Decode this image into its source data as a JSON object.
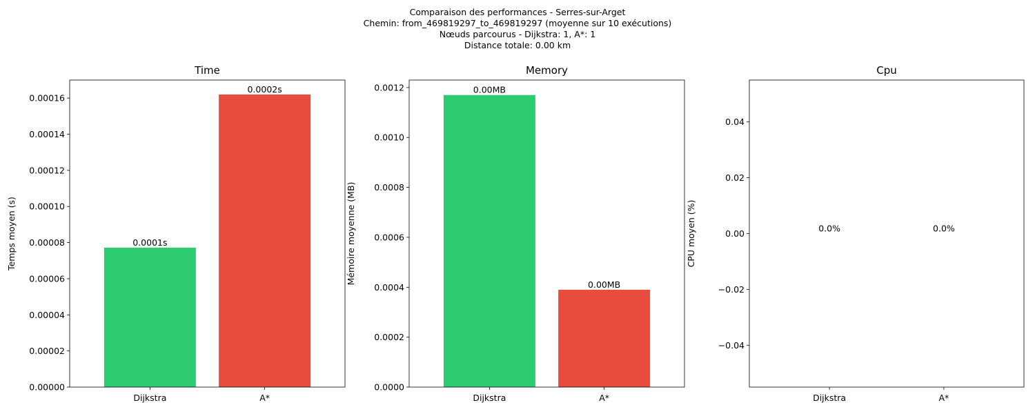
{
  "suptitle": {
    "line1": "Comparaison des performances - Serres-sur-Arget",
    "line2": "Chemin: from_469819297_to_469819297 (moyenne sur 10 exécutions)",
    "line3": "Nœuds parcourus - Dijkstra: 1, A*: 1",
    "line4": "Distance totale: 0.00 km"
  },
  "colors": {
    "dijkstra": "#2ecc71",
    "astar": "#e74c3c"
  },
  "chart_data": [
    {
      "type": "bar",
      "title": "Time",
      "xlabel": "",
      "ylabel": "Temps moyen (s)",
      "categories": [
        "Dijkstra",
        "A*"
      ],
      "values": [
        7.72e-05,
        0.000162
      ],
      "data_labels": [
        "0.0001s",
        "0.0002s"
      ],
      "ylim": [
        0,
        0.00017
      ],
      "yticks": [
        0,
        2e-05,
        4e-05,
        6e-05,
        8e-05,
        0.0001,
        0.00012,
        0.00014,
        0.00016
      ],
      "ytick_labels": [
        "0.00000",
        "0.00002",
        "0.00004",
        "0.00006",
        "0.00008",
        "0.00010",
        "0.00012",
        "0.00014",
        "0.00016"
      ],
      "grid": false,
      "legend": "none"
    },
    {
      "type": "bar",
      "title": "Memory",
      "xlabel": "",
      "ylabel": "Mémoire moyenne (MB)",
      "categories": [
        "Dijkstra",
        "A*"
      ],
      "values": [
        0.00117,
        0.00039
      ],
      "data_labels": [
        "0.00MB",
        "0.00MB"
      ],
      "ylim": [
        0,
        0.00123
      ],
      "yticks": [
        0,
        0.0002,
        0.0004,
        0.0006,
        0.0008,
        0.001,
        0.0012
      ],
      "ytick_labels": [
        "0.0000",
        "0.0002",
        "0.0004",
        "0.0006",
        "0.0008",
        "0.0010",
        "0.0012"
      ],
      "grid": false,
      "legend": "none"
    },
    {
      "type": "bar",
      "title": "Cpu",
      "xlabel": "",
      "ylabel": "CPU moyen (%)",
      "categories": [
        "Dijkstra",
        "A*"
      ],
      "values": [
        0.0,
        0.0
      ],
      "data_labels": [
        "0.0%",
        "0.0%"
      ],
      "ylim": [
        -0.055,
        0.055
      ],
      "yticks": [
        -0.04,
        -0.02,
        0.0,
        0.02,
        0.04
      ],
      "ytick_labels": [
        "−0.04",
        "−0.02",
        "0.00",
        "0.02",
        "0.04"
      ],
      "grid": false,
      "legend": "none"
    }
  ]
}
